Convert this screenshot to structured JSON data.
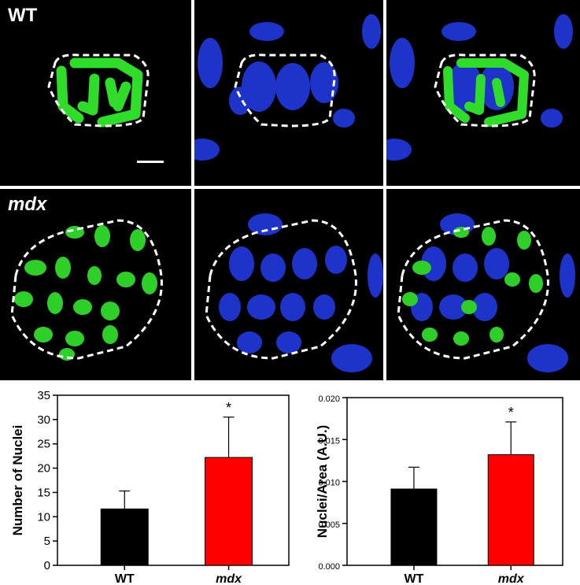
{
  "micrographs": {
    "row_labels": [
      "WT",
      "mdx"
    ],
    "columns": [
      "green",
      "blue",
      "merge"
    ]
  },
  "chart_data": [
    {
      "type": "bar",
      "categories": [
        "WT",
        "mdx"
      ],
      "category_italic": [
        false,
        true
      ],
      "values": [
        11.6,
        22.2
      ],
      "errors": [
        3.7,
        8.3
      ],
      "colors": [
        "#000000",
        "#ff0000"
      ],
      "significance": [
        "",
        "*"
      ],
      "ylabel": "Number of Nuclei",
      "xlabel": "",
      "ylim": [
        0,
        35
      ],
      "yticks": [
        0,
        5,
        10,
        15,
        20,
        25,
        30,
        35
      ],
      "ytick_labels": [
        "0",
        "5",
        "10",
        "15",
        "20",
        "25",
        "30",
        "35"
      ],
      "grid": false
    },
    {
      "type": "bar",
      "categories": [
        "WT",
        "mdx"
      ],
      "category_italic": [
        false,
        true
      ],
      "values": [
        0.0091,
        0.0132
      ],
      "errors": [
        0.0026,
        0.0039
      ],
      "colors": [
        "#000000",
        "#ff0000"
      ],
      "significance": [
        "",
        "*"
      ],
      "ylabel": "Nuclei/Area (A.U.)",
      "xlabel": "",
      "ylim": [
        0,
        0.02
      ],
      "yticks": [
        0,
        0.005,
        0.01,
        0.015,
        0.02
      ],
      "ytick_labels": [
        "0.000",
        "0.005",
        "0.010",
        "0.015",
        "0.020"
      ],
      "grid": false
    }
  ]
}
